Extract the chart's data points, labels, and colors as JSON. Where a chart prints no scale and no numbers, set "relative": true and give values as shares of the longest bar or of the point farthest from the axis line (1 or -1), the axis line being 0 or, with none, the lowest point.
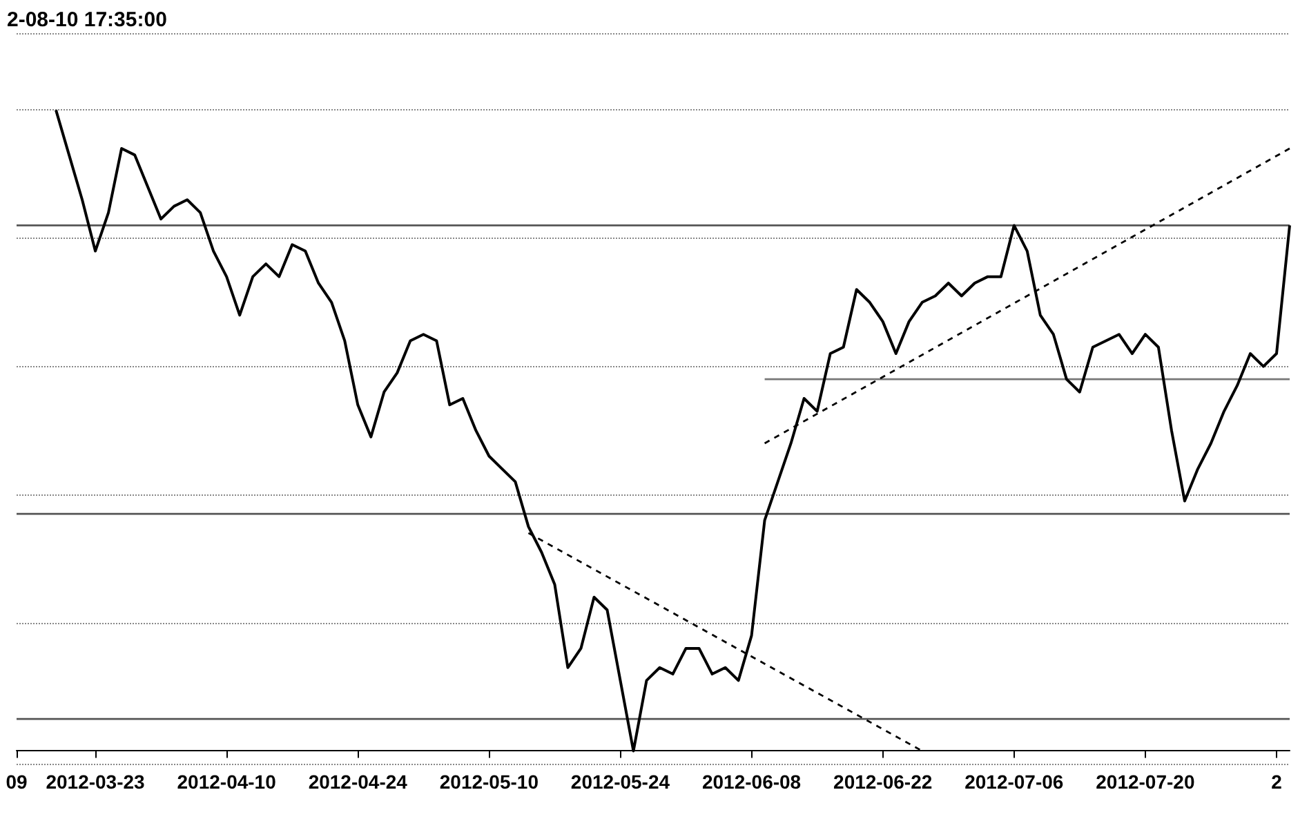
{
  "chart_data": {
    "type": "line",
    "title": "2-08-10 17:35:00",
    "relative": true,
    "grid": "y",
    "marker": "none",
    "categories": [
      "09",
      null,
      null,
      null,
      null,
      null,
      "2012-03-23",
      null,
      null,
      null,
      null,
      null,
      null,
      null,
      null,
      null,
      "2012-04-10",
      null,
      null,
      null,
      null,
      null,
      null,
      null,
      null,
      null,
      "2012-04-24",
      null,
      null,
      null,
      null,
      null,
      null,
      null,
      null,
      null,
      "2012-05-10",
      null,
      null,
      null,
      null,
      null,
      null,
      null,
      null,
      null,
      "2012-05-24",
      null,
      null,
      null,
      null,
      null,
      null,
      null,
      null,
      null,
      "2012-06-08",
      null,
      null,
      null,
      null,
      null,
      null,
      null,
      null,
      null,
      "2012-06-22",
      null,
      null,
      null,
      null,
      null,
      null,
      null,
      null,
      null,
      "2012-07-06",
      null,
      null,
      null,
      null,
      null,
      null,
      null,
      null,
      null,
      "2012-07-20",
      null,
      null,
      null,
      null,
      null,
      null,
      null,
      null,
      null,
      "2",
      null
    ],
    "series": [
      {
        "color": "#000000",
        "line_style": "solid",
        "values": [
          null,
          null,
          null,
          1.0,
          0.93,
          0.86,
          0.78,
          0.84,
          0.94,
          0.93,
          0.88,
          0.83,
          0.85,
          0.86,
          0.84,
          0.78,
          0.74,
          0.68,
          0.74,
          0.76,
          0.74,
          0.79,
          0.78,
          0.73,
          0.7,
          0.64,
          0.54,
          0.49,
          0.56,
          0.59,
          0.64,
          0.65,
          0.64,
          0.54,
          0.55,
          0.5,
          0.46,
          0.44,
          0.42,
          0.35,
          0.31,
          0.26,
          0.13,
          0.16,
          0.24,
          0.22,
          0.11,
          0.0,
          0.11,
          0.13,
          0.12,
          0.16,
          0.16,
          0.12,
          0.13,
          0.11,
          0.18,
          0.36,
          0.42,
          0.48,
          0.55,
          0.53,
          0.62,
          0.63,
          0.72,
          0.7,
          0.67,
          0.62,
          0.67,
          0.7,
          0.71,
          0.73,
          0.71,
          0.73,
          0.74,
          0.74,
          0.82,
          0.78,
          0.68,
          0.65,
          0.58,
          0.56,
          0.63,
          0.64,
          0.65,
          0.62,
          0.65,
          0.63,
          0.5,
          0.39,
          0.44,
          0.48,
          0.53,
          0.57,
          0.62,
          0.6,
          0.62,
          0.82
        ]
      },
      {
        "color": "#555555",
        "line_style": "solid",
        "values": [
          0.82,
          null,
          null,
          null,
          null,
          null,
          null,
          null,
          null,
          null,
          null,
          null,
          null,
          null,
          null,
          null,
          null,
          null,
          null,
          null,
          null,
          null,
          null,
          null,
          null,
          null,
          null,
          null,
          null,
          null,
          null,
          null,
          null,
          null,
          null,
          null,
          null,
          null,
          null,
          null,
          null,
          null,
          null,
          null,
          null,
          null,
          null,
          null,
          null,
          null,
          null,
          null,
          null,
          null,
          null,
          null,
          null,
          null,
          null,
          null,
          null,
          null,
          null,
          null,
          null,
          null,
          null,
          null,
          null,
          null,
          null,
          null,
          null,
          null,
          null,
          null,
          null,
          null,
          null,
          null,
          null,
          null,
          null,
          null,
          null,
          null,
          null,
          null,
          null,
          null,
          null,
          null,
          null,
          null,
          null,
          null,
          null,
          0.82
        ]
      },
      {
        "color": "#555555",
        "line_style": "solid",
        "values": [
          0.37,
          null,
          null,
          null,
          null,
          null,
          null,
          null,
          null,
          null,
          null,
          null,
          null,
          null,
          null,
          null,
          null,
          null,
          null,
          null,
          null,
          null,
          null,
          null,
          null,
          null,
          null,
          null,
          null,
          null,
          null,
          null,
          null,
          null,
          null,
          null,
          null,
          null,
          null,
          null,
          null,
          null,
          null,
          null,
          null,
          null,
          null,
          null,
          null,
          null,
          null,
          null,
          null,
          null,
          null,
          null,
          null,
          null,
          null,
          null,
          null,
          null,
          null,
          null,
          null,
          null,
          null,
          null,
          null,
          null,
          null,
          null,
          null,
          null,
          null,
          null,
          null,
          null,
          null,
          null,
          null,
          null,
          null,
          null,
          null,
          null,
          null,
          null,
          null,
          null,
          null,
          null,
          null,
          null,
          null,
          null,
          null,
          0.37
        ]
      },
      {
        "color": "#555555",
        "line_style": "solid",
        "values": [
          0.05,
          null,
          null,
          null,
          null,
          null,
          null,
          null,
          null,
          null,
          null,
          null,
          null,
          null,
          null,
          null,
          null,
          null,
          null,
          null,
          null,
          null,
          null,
          null,
          null,
          null,
          null,
          null,
          null,
          null,
          null,
          null,
          null,
          null,
          null,
          null,
          null,
          null,
          null,
          null,
          null,
          null,
          null,
          null,
          null,
          null,
          null,
          null,
          null,
          null,
          null,
          null,
          null,
          null,
          null,
          null,
          null,
          null,
          null,
          null,
          null,
          null,
          null,
          null,
          null,
          null,
          null,
          null,
          null,
          null,
          null,
          null,
          null,
          null,
          null,
          null,
          null,
          null,
          null,
          null,
          null,
          null,
          null,
          null,
          null,
          null,
          null,
          null,
          null,
          null,
          null,
          null,
          null,
          null,
          null,
          null,
          null,
          0.05
        ]
      },
      {
        "color": "#777777",
        "line_style": "solid",
        "values": [
          null,
          null,
          null,
          null,
          null,
          null,
          null,
          null,
          null,
          null,
          null,
          null,
          null,
          null,
          null,
          null,
          null,
          null,
          null,
          null,
          null,
          null,
          null,
          null,
          null,
          null,
          null,
          null,
          null,
          null,
          null,
          null,
          null,
          null,
          null,
          null,
          null,
          null,
          null,
          null,
          null,
          null,
          null,
          null,
          null,
          null,
          null,
          null,
          null,
          null,
          null,
          null,
          null,
          null,
          null,
          null,
          null,
          0.58,
          null,
          null,
          null,
          null,
          null,
          null,
          null,
          null,
          null,
          null,
          null,
          null,
          null,
          null,
          null,
          null,
          null,
          null,
          null,
          null,
          null,
          null,
          null,
          null,
          null,
          null,
          null,
          null,
          null,
          null,
          null,
          null,
          null,
          null,
          null,
          null,
          null,
          null,
          null,
          0.58
        ]
      },
      {
        "color": "#000000",
        "line_style": "dashed",
        "values": [
          null,
          null,
          null,
          null,
          null,
          null,
          null,
          null,
          null,
          null,
          null,
          null,
          null,
          null,
          null,
          null,
          null,
          null,
          null,
          null,
          null,
          null,
          null,
          null,
          null,
          null,
          null,
          null,
          null,
          null,
          null,
          null,
          null,
          null,
          null,
          null,
          null,
          null,
          null,
          0.34,
          null,
          null,
          null,
          null,
          null,
          null,
          null,
          null,
          null,
          null,
          null,
          null,
          null,
          null,
          null,
          null,
          null,
          null,
          null,
          null,
          null,
          null,
          null,
          null,
          null,
          null,
          null,
          null,
          null,
          0.0,
          null,
          null,
          null,
          null,
          null,
          null,
          null,
          null,
          null,
          null,
          null,
          null,
          null,
          null,
          null,
          null,
          null,
          null,
          null,
          null,
          null,
          null,
          null,
          null,
          null,
          null,
          null,
          null
        ]
      },
      {
        "color": "#000000",
        "line_style": "dashed",
        "values": [
          null,
          null,
          null,
          null,
          null,
          null,
          null,
          null,
          null,
          null,
          null,
          null,
          null,
          null,
          null,
          null,
          null,
          null,
          null,
          null,
          null,
          null,
          null,
          null,
          null,
          null,
          null,
          null,
          null,
          null,
          null,
          null,
          null,
          null,
          null,
          null,
          null,
          null,
          null,
          null,
          null,
          null,
          null,
          null,
          null,
          null,
          null,
          null,
          null,
          null,
          null,
          null,
          null,
          null,
          null,
          null,
          null,
          0.48,
          null,
          null,
          null,
          null,
          null,
          null,
          null,
          null,
          null,
          null,
          null,
          null,
          null,
          null,
          null,
          null,
          null,
          null,
          null,
          null,
          null,
          null,
          null,
          null,
          null,
          null,
          null,
          null,
          null,
          null,
          null,
          null,
          null,
          null,
          null,
          null,
          null,
          null,
          null,
          0.94
        ]
      }
    ]
  }
}
